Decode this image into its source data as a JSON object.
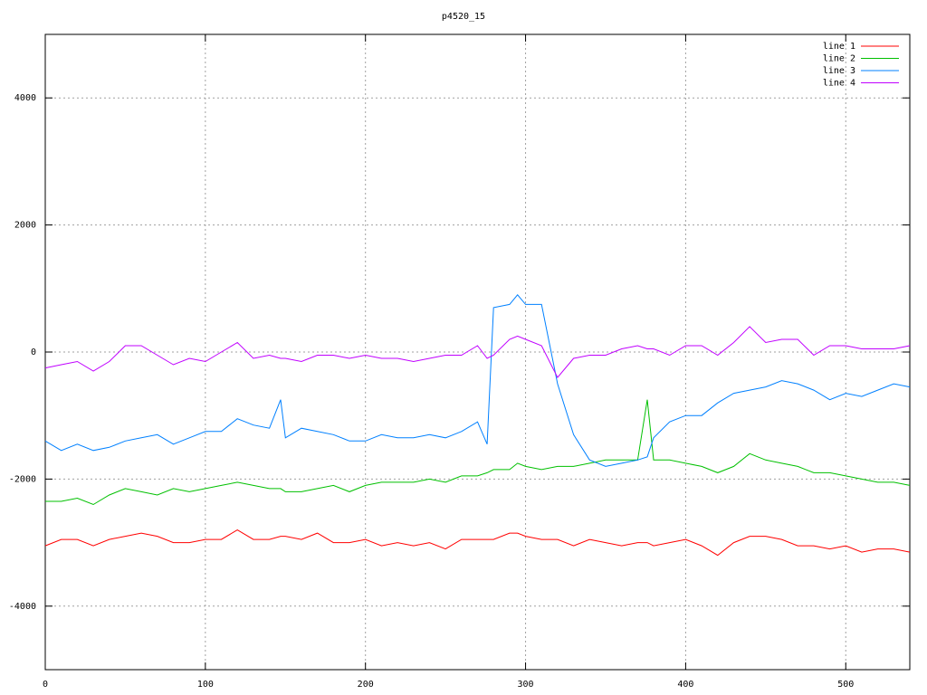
{
  "chart_data": {
    "type": "line",
    "title": "p4520_15",
    "x": [
      0,
      10,
      20,
      30,
      40,
      50,
      60,
      70,
      80,
      90,
      100,
      110,
      120,
      130,
      140,
      147,
      150,
      160,
      170,
      180,
      190,
      200,
      210,
      220,
      230,
      240,
      250,
      260,
      270,
      276,
      280,
      290,
      295,
      300,
      310,
      320,
      330,
      340,
      350,
      360,
      370,
      376,
      380,
      390,
      400,
      410,
      420,
      430,
      440,
      450,
      460,
      470,
      480,
      490,
      500,
      510,
      520,
      530,
      540
    ],
    "series": [
      {
        "name": "line 1",
        "color": "#ff0000",
        "values": [
          -3050,
          -2950,
          -2950,
          -3050,
          -2950,
          -2900,
          -2850,
          -2900,
          -3000,
          -3000,
          -2950,
          -2950,
          -2800,
          -2950,
          -2950,
          -2900,
          -2900,
          -2950,
          -2850,
          -3000,
          -3000,
          -2950,
          -3050,
          -3000,
          -3050,
          -3000,
          -3100,
          -2950,
          -2950,
          -2950,
          -2950,
          -2850,
          -2850,
          -2900,
          -2950,
          -2950,
          -3050,
          -2950,
          -3000,
          -3050,
          -3000,
          -3000,
          -3050,
          -3000,
          -2950,
          -3050,
          -3200,
          -3000,
          -2900,
          -2900,
          -2950,
          -3050,
          -3050,
          -3100,
          -3050,
          -3150,
          -3100,
          -3100,
          -3150
        ]
      },
      {
        "name": "line 2",
        "color": "#00c000",
        "values": [
          -2350,
          -2350,
          -2300,
          -2400,
          -2250,
          -2150,
          -2200,
          -2250,
          -2150,
          -2200,
          -2150,
          -2100,
          -2050,
          -2100,
          -2150,
          -2150,
          -2200,
          -2200,
          -2150,
          -2100,
          -2200,
          -2100,
          -2050,
          -2050,
          -2050,
          -2000,
          -2050,
          -1950,
          -1950,
          -1900,
          -1850,
          -1850,
          -1750,
          -1800,
          -1850,
          -1800,
          -1800,
          -1750,
          -1700,
          -1700,
          -1700,
          -750,
          -1700,
          -1700,
          -1750,
          -1800,
          -1900,
          -1800,
          -1600,
          -1700,
          -1750,
          -1800,
          -1900,
          -1900,
          -1950,
          -2000,
          -2050,
          -2050,
          -2100
        ]
      },
      {
        "name": "line 3",
        "color": "#0080ff",
        "values": [
          -1400,
          -1550,
          -1450,
          -1550,
          -1500,
          -1400,
          -1350,
          -1300,
          -1450,
          -1350,
          -1250,
          -1250,
          -1050,
          -1150,
          -1200,
          -750,
          -1350,
          -1200,
          -1250,
          -1300,
          -1400,
          -1400,
          -1300,
          -1350,
          -1350,
          -1300,
          -1350,
          -1250,
          -1100,
          -1450,
          700,
          750,
          900,
          750,
          750,
          -500,
          -1300,
          -1700,
          -1800,
          -1750,
          -1700,
          -1650,
          -1350,
          -1100,
          -1000,
          -1000,
          -800,
          -650,
          -600,
          -550,
          -450,
          -500,
          -600,
          -750,
          -650,
          -700,
          -600,
          -500,
          -550
        ]
      },
      {
        "name": "line 4",
        "color": "#c000ff",
        "values": [
          -250,
          -200,
          -150,
          -300,
          -150,
          100,
          100,
          -50,
          -200,
          -100,
          -150,
          0,
          150,
          -100,
          -50,
          -100,
          -100,
          -150,
          -50,
          -50,
          -100,
          -50,
          -100,
          -100,
          -150,
          -100,
          -50,
          -50,
          100,
          -100,
          -50,
          200,
          250,
          200,
          100,
          -400,
          -100,
          -50,
          -50,
          50,
          100,
          50,
          50,
          -50,
          100,
          100,
          -50,
          150,
          400,
          150,
          200,
          200,
          -50,
          100,
          100,
          50,
          50,
          50,
          100
        ]
      }
    ],
    "xlim": [
      0,
      540
    ],
    "xticks": [
      0,
      100,
      200,
      300,
      400,
      500
    ],
    "ylim": [
      -5000,
      5000
    ],
    "yticks": [
      -4000,
      -2000,
      0,
      2000,
      4000
    ],
    "grid": true,
    "legend": "top-right"
  }
}
